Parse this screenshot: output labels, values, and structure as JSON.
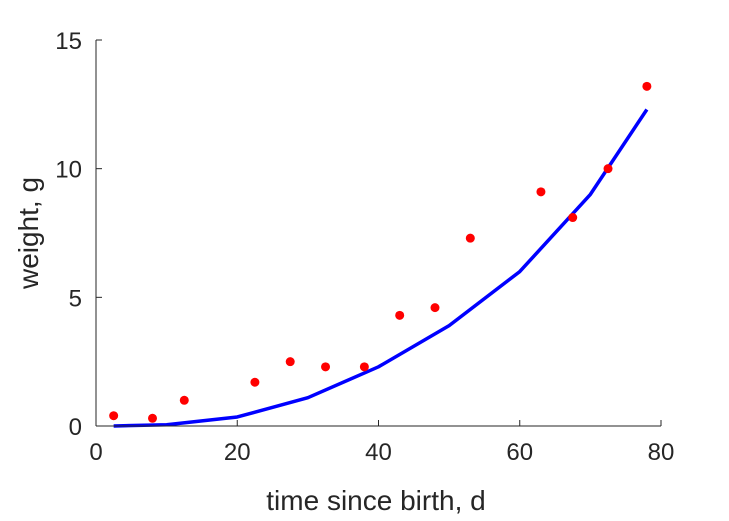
{
  "chart_data": {
    "type": "scatter",
    "title": "",
    "xlabel": "time since birth, d",
    "ylabel": "weight, g",
    "xlim": [
      0,
      80
    ],
    "ylim": [
      0,
      15
    ],
    "xticks": [
      0,
      20,
      40,
      60,
      80
    ],
    "yticks": [
      0,
      5,
      10,
      15
    ],
    "grid": false,
    "colors": {
      "points": "#ff0000",
      "line": "#0000ff",
      "axes": "#262626"
    },
    "series": [
      {
        "type": "scatter",
        "x": [
          2.5,
          8,
          12.5,
          22.5,
          27.5,
          32.5,
          38,
          43,
          48,
          53,
          63,
          67.5,
          72.5,
          78
        ],
        "y": [
          0.4,
          0.3,
          1.0,
          1.7,
          2.5,
          2.3,
          2.3,
          4.3,
          4.6,
          7.3,
          9.1,
          8.1,
          10.0,
          13.2
        ]
      },
      {
        "type": "line",
        "x": [
          2.5,
          10,
          20,
          30,
          40,
          50,
          60,
          70,
          78
        ],
        "y": [
          0.0,
          0.05,
          0.35,
          1.1,
          2.3,
          3.9,
          6.0,
          9.0,
          12.3
        ]
      }
    ]
  }
}
